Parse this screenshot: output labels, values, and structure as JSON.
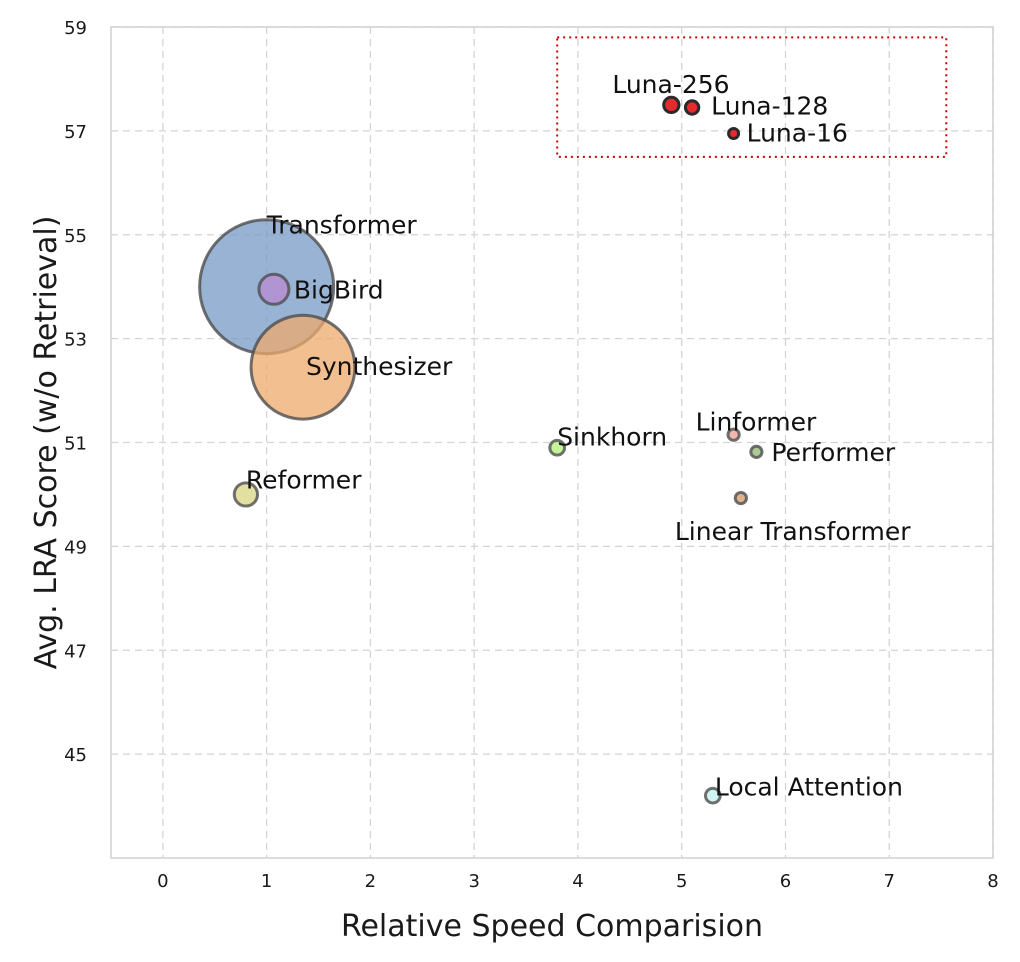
{
  "chart_data": {
    "type": "scatter",
    "title": "",
    "xlabel": "Relative Speed Comparision",
    "ylabel": "Avg. LRA Score (w/o Retrieval)",
    "xlim": [
      -0.5,
      8
    ],
    "ylim": [
      43,
      59
    ],
    "xticks": [
      "0",
      "1",
      "2",
      "3",
      "4",
      "5",
      "6",
      "7",
      "8"
    ],
    "yticks": [
      "45",
      "47",
      "49",
      "51",
      "53",
      "55",
      "57",
      "59"
    ],
    "grid": true,
    "bubble_size_meaning": "relative memory footprint",
    "points": [
      {
        "name": "Transformer",
        "x": 1.0,
        "y": 54.0,
        "size": 1.0,
        "color": "#7799c6"
      },
      {
        "name": "BigBird",
        "x": 1.07,
        "y": 53.95,
        "size": 0.05,
        "color": "#b98ad2"
      },
      {
        "name": "Synthesizer",
        "x": 1.35,
        "y": 52.45,
        "size": 0.6,
        "color": "#eea96c"
      },
      {
        "name": "Reformer",
        "x": 0.8,
        "y": 50.0,
        "size": 0.03,
        "color": "#d8d680"
      },
      {
        "name": "Sinkhorn",
        "x": 3.8,
        "y": 50.9,
        "size": 0.012,
        "color": "#b3ee7a"
      },
      {
        "name": "Linformer",
        "x": 5.5,
        "y": 51.15,
        "size": 0.007,
        "color": "#eaa090"
      },
      {
        "name": "Performer",
        "x": 5.72,
        "y": 50.82,
        "size": 0.007,
        "color": "#8fb872"
      },
      {
        "name": "Linear Transformer",
        "x": 5.57,
        "y": 49.93,
        "size": 0.007,
        "color": "#d59a6a"
      },
      {
        "name": "Local Attention",
        "x": 5.3,
        "y": 44.2,
        "size": 0.012,
        "color": "#bff0f2"
      },
      {
        "name": "Luna-256",
        "x": 4.9,
        "y": 57.5,
        "size": 0.013,
        "color": "#e52b2b"
      },
      {
        "name": "Luna-128",
        "x": 5.1,
        "y": 57.45,
        "size": 0.01,
        "color": "#e52b2b"
      },
      {
        "name": "Luna-16",
        "x": 5.5,
        "y": 56.95,
        "size": 0.003,
        "color": "#e52b2b"
      }
    ],
    "highlight_box": {
      "x0": 3.8,
      "x1": 7.55,
      "y0": 56.5,
      "y1": 58.8,
      "color": "#cc0000",
      "style": "dotted"
    }
  }
}
